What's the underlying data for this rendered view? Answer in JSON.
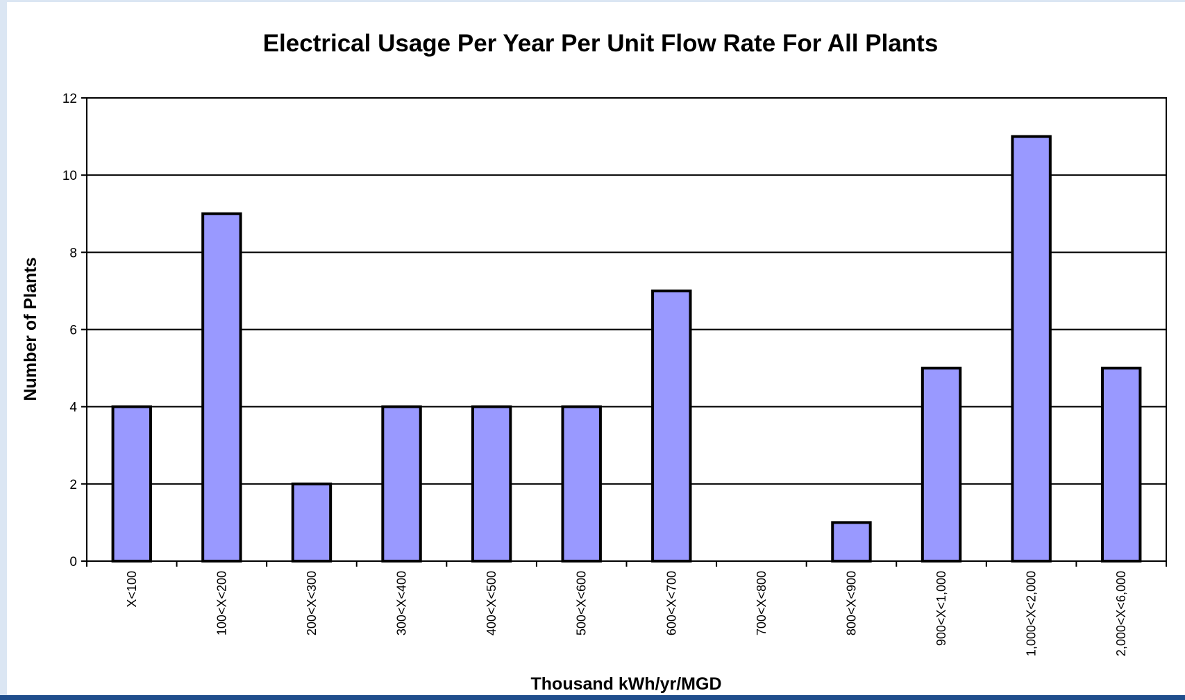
{
  "chart_data": {
    "type": "bar",
    "title": "Electrical Usage Per Year Per Unit Flow Rate For All Plants",
    "xlabel": "Thousand kWh/yr/MGD",
    "ylabel": "Number of Plants",
    "categories": [
      "X<100",
      "100<X<200",
      "200<X<300",
      "300<X<400",
      "400<X<500",
      "500<X<600",
      "600<X<700",
      "700<X<800",
      "800<X<900",
      "900<X<1,000",
      "1,000<X<2,000",
      "2,000<X<6,000"
    ],
    "values": [
      4,
      9,
      2,
      4,
      4,
      4,
      7,
      0,
      1,
      5,
      11,
      5
    ],
    "ylim": [
      0,
      12
    ],
    "yticks": [
      0,
      2,
      4,
      6,
      8,
      10,
      12
    ],
    "grid": true,
    "bar_color": "#9999ff",
    "bar_edge_color": "#000000"
  }
}
